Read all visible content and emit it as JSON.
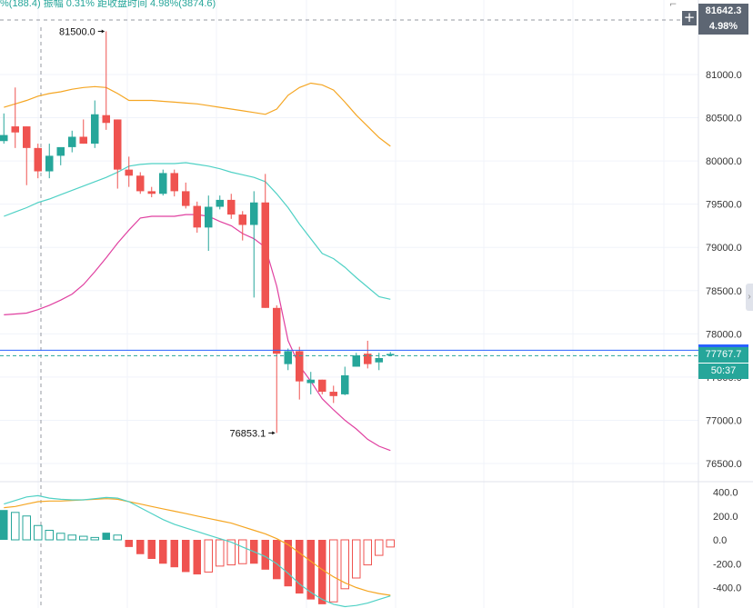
{
  "header": {
    "info_text": "%(188.4)  振幅 0.31%  距收盘时间 4.98%(3874.6)"
  },
  "price_badge": {
    "price": "81642.3",
    "percent": "4.98%"
  },
  "last_price_badge": {
    "price": "77767.7",
    "countdown": "50:37"
  },
  "colors": {
    "up": "#26a69a",
    "down": "#ef5350",
    "grid": "#f0f3fa",
    "axis_text": "#333333"
  },
  "icons": {
    "plus": "+",
    "corner": "⌐",
    "handle": "›"
  },
  "chart_data": {
    "type": "candlestick",
    "y_axis": {
      "ticks": [
        81000.0,
        80500.0,
        80000.0,
        79500.0,
        79000.0,
        78500.0,
        78000.0,
        77500.0,
        77000.0,
        76500.0
      ],
      "tick_labels": [
        "81000.0",
        "80500.0",
        "80000.0",
        "79500.0",
        "79000.0",
        "78500.0",
        "78000.0",
        "77500.0",
        "77000.0",
        "76500.0"
      ],
      "range": [
        76000,
        81900
      ]
    },
    "candles": [
      {
        "o": 80230,
        "h": 80550,
        "l": 80200,
        "c": 80300
      },
      {
        "o": 80400,
        "h": 80850,
        "l": 80150,
        "c": 80330
      },
      {
        "o": 80400,
        "h": 80400,
        "l": 79720,
        "c": 80150
      },
      {
        "o": 80150,
        "h": 80200,
        "l": 79800,
        "c": 79880
      },
      {
        "o": 79880,
        "h": 80200,
        "l": 79800,
        "c": 80060
      },
      {
        "o": 80060,
        "h": 80150,
        "l": 79950,
        "c": 80160
      },
      {
        "o": 80160,
        "h": 80350,
        "l": 80100,
        "c": 80280
      },
      {
        "o": 80280,
        "h": 80480,
        "l": 80200,
        "c": 80200
      },
      {
        "o": 80200,
        "h": 80700,
        "l": 80150,
        "c": 80540
      },
      {
        "o": 80530,
        "h": 81500,
        "l": 80360,
        "c": 80440
      },
      {
        "o": 80480,
        "h": 80480,
        "l": 79680,
        "c": 79900
      },
      {
        "o": 79900,
        "h": 80050,
        "l": 79700,
        "c": 79830
      },
      {
        "o": 79830,
        "h": 79870,
        "l": 79620,
        "c": 79650
      },
      {
        "o": 79650,
        "h": 79700,
        "l": 79580,
        "c": 79620
      },
      {
        "o": 79620,
        "h": 79900,
        "l": 79600,
        "c": 79860
      },
      {
        "o": 79860,
        "h": 79900,
        "l": 79590,
        "c": 79650
      },
      {
        "o": 79650,
        "h": 79750,
        "l": 79450,
        "c": 79480
      },
      {
        "o": 79480,
        "h": 79530,
        "l": 79170,
        "c": 79230
      },
      {
        "o": 79230,
        "h": 79600,
        "l": 78960,
        "c": 79470
      },
      {
        "o": 79470,
        "h": 79600,
        "l": 79440,
        "c": 79550
      },
      {
        "o": 79550,
        "h": 79620,
        "l": 79330,
        "c": 79380
      },
      {
        "o": 79380,
        "h": 79420,
        "l": 79080,
        "c": 79260
      },
      {
        "o": 79260,
        "h": 79650,
        "l": 78420,
        "c": 79520
      },
      {
        "o": 79520,
        "h": 79850,
        "l": 78300,
        "c": 78300
      },
      {
        "o": 78300,
        "h": 78330,
        "l": 76853.1,
        "c": 77770
      },
      {
        "o": 77650,
        "h": 77830,
        "l": 77580,
        "c": 77800
      },
      {
        "o": 77800,
        "h": 77850,
        "l": 77240,
        "c": 77450
      },
      {
        "o": 77430,
        "h": 77560,
        "l": 77300,
        "c": 77470
      },
      {
        "o": 77470,
        "h": 77470,
        "l": 77300,
        "c": 77330
      },
      {
        "o": 77330,
        "h": 77400,
        "l": 77200,
        "c": 77280
      },
      {
        "o": 77300,
        "h": 77620,
        "l": 77290,
        "c": 77520
      },
      {
        "o": 77620,
        "h": 77780,
        "l": 77620,
        "c": 77750
      },
      {
        "o": 77770,
        "h": 77920,
        "l": 77600,
        "c": 77650
      },
      {
        "o": 77670,
        "h": 77780,
        "l": 77580,
        "c": 77720
      },
      {
        "o": 77750,
        "h": 77790,
        "l": 77740,
        "c": 77767.7
      }
    ],
    "ma_orange": [
      80620,
      80660,
      80700,
      80750,
      80780,
      80800,
      80830,
      80850,
      80860,
      80850,
      80780,
      80700,
      80700,
      80700,
      80690,
      80680,
      80670,
      80660,
      80640,
      80620,
      80600,
      80580,
      80560,
      80540,
      80600,
      80760,
      80850,
      80900,
      80880,
      80820,
      80680,
      80530,
      80400,
      80270,
      80170
    ],
    "ma_teal": [
      79360,
      79410,
      79460,
      79520,
      79560,
      79610,
      79660,
      79710,
      79760,
      79810,
      79870,
      79940,
      79960,
      79970,
      79970,
      79970,
      79980,
      79960,
      79940,
      79910,
      79870,
      79840,
      79810,
      79760,
      79620,
      79460,
      79270,
      79100,
      78930,
      78870,
      78770,
      78650,
      78540,
      78430,
      78400
    ],
    "ma_pink": [
      78220,
      78230,
      78240,
      78280,
      78330,
      78390,
      78460,
      78570,
      78720,
      78880,
      79050,
      79200,
      79340,
      79360,
      79360,
      79360,
      79380,
      79380,
      79360,
      79300,
      79250,
      79160,
      79100,
      79000,
      78550,
      77920,
      77630,
      77450,
      77250,
      77120,
      77000,
      76900,
      76780,
      76700,
      76650
    ],
    "ma_x_offset": [
      0,
      0
    ],
    "annotations": [
      {
        "label": "81500.0",
        "candle": 9,
        "price": 81500.0,
        "side": "left"
      },
      {
        "label": "76853.1",
        "candle": 24,
        "price": 76853.1,
        "side": "left"
      }
    ],
    "current_price_line": 77767.7,
    "macd": {
      "ticks": [
        400.0,
        200.0,
        0.0,
        -200.0,
        -400.0
      ],
      "tick_labels": [
        "400.0",
        "200.0",
        "0.0",
        "-200.0",
        "-400.0"
      ],
      "range": [
        -520,
        450
      ],
      "histogram": [
        250,
        230,
        200,
        120,
        80,
        55,
        40,
        30,
        20,
        60,
        40,
        -60,
        -120,
        -160,
        -200,
        -230,
        -270,
        -290,
        -270,
        -220,
        -210,
        -200,
        -200,
        -250,
        -330,
        -390,
        -450,
        -500,
        -540,
        -520,
        -410,
        -320,
        -210,
        -130,
        -60
      ],
      "dif": [
        300,
        330,
        360,
        370,
        350,
        340,
        335,
        335,
        345,
        355,
        350,
        320,
        270,
        220,
        170,
        130,
        100,
        70,
        40,
        10,
        -20,
        -60,
        -100,
        -140,
        -200,
        -280,
        -370,
        -440,
        -500,
        -540,
        -560,
        -550,
        -530,
        -500,
        -470
      ],
      "dea": [
        270,
        280,
        300,
        320,
        325,
        325,
        330,
        335,
        340,
        345,
        340,
        320,
        300,
        280,
        260,
        240,
        220,
        200,
        180,
        160,
        140,
        110,
        80,
        50,
        10,
        -40,
        -110,
        -180,
        -250,
        -310,
        -360,
        -400,
        -430,
        -450,
        -465
      ]
    }
  }
}
